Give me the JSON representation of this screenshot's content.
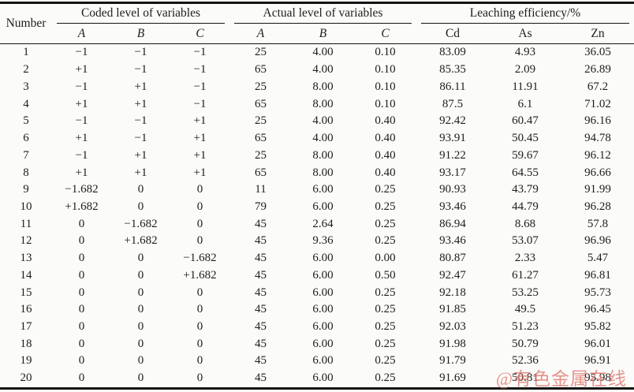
{
  "table": {
    "number_label": "Number",
    "groups": [
      {
        "label": "Coded level of variables",
        "cols": [
          "A",
          "B",
          "C"
        ]
      },
      {
        "label": "Actual level of variables",
        "cols": [
          "A",
          "B",
          "C"
        ]
      },
      {
        "label": "Leaching efficiency/%",
        "cols": [
          "Cd",
          "As",
          "Zn"
        ]
      }
    ],
    "rows": [
      [
        "1",
        "−1",
        "−1",
        "−1",
        "25",
        "4.00",
        "0.10",
        "83.09",
        "4.93",
        "36.05"
      ],
      [
        "2",
        "+1",
        "−1",
        "−1",
        "65",
        "4.00",
        "0.10",
        "85.35",
        "2.09",
        "26.89"
      ],
      [
        "3",
        "−1",
        "+1",
        "−1",
        "25",
        "8.00",
        "0.10",
        "86.11",
        "11.91",
        "67.2"
      ],
      [
        "4",
        "+1",
        "+1",
        "−1",
        "65",
        "8.00",
        "0.10",
        "87.5",
        "6.1",
        "71.02"
      ],
      [
        "5",
        "−1",
        "−1",
        "+1",
        "25",
        "4.00",
        "0.40",
        "92.42",
        "60.47",
        "96.16"
      ],
      [
        "6",
        "+1",
        "−1",
        "+1",
        "65",
        "4.00",
        "0.40",
        "93.91",
        "50.45",
        "94.78"
      ],
      [
        "7",
        "−1",
        "+1",
        "+1",
        "25",
        "8.00",
        "0.40",
        "91.22",
        "59.67",
        "96.12"
      ],
      [
        "8",
        "+1",
        "+1",
        "+1",
        "65",
        "8.00",
        "0.40",
        "93.17",
        "64.55",
        "96.66"
      ],
      [
        "9",
        "−1.682",
        "0",
        "0",
        "11",
        "6.00",
        "0.25",
        "90.93",
        "43.79",
        "91.99"
      ],
      [
        "10",
        "+1.682",
        "0",
        "0",
        "79",
        "6.00",
        "0.25",
        "93.46",
        "44.79",
        "96.28"
      ],
      [
        "11",
        "0",
        "−1.682",
        "0",
        "45",
        "2.64",
        "0.25",
        "86.94",
        "8.68",
        "57.8"
      ],
      [
        "12",
        "0",
        "+1.682",
        "0",
        "45",
        "9.36",
        "0.25",
        "93.46",
        "53.07",
        "96.96"
      ],
      [
        "13",
        "0",
        "0",
        "−1.682",
        "45",
        "6.00",
        "0.00",
        "80.87",
        "2.33",
        "5.47"
      ],
      [
        "14",
        "0",
        "0",
        "+1.682",
        "45",
        "6.00",
        "0.50",
        "92.47",
        "61.27",
        "96.81"
      ],
      [
        "15",
        "0",
        "0",
        "0",
        "45",
        "6.00",
        "0.25",
        "92.18",
        "53.25",
        "95.73"
      ],
      [
        "16",
        "0",
        "0",
        "0",
        "45",
        "6.00",
        "0.25",
        "91.85",
        "49.5",
        "96.45"
      ],
      [
        "17",
        "0",
        "0",
        "0",
        "45",
        "6.00",
        "0.25",
        "92.03",
        "51.23",
        "95.82"
      ],
      [
        "18",
        "0",
        "0",
        "0",
        "45",
        "6.00",
        "0.25",
        "91.98",
        "50.79",
        "96.01"
      ],
      [
        "19",
        "0",
        "0",
        "0",
        "45",
        "6.00",
        "0.25",
        "91.79",
        "52.36",
        "96.91"
      ],
      [
        "20",
        "0",
        "0",
        "0",
        "45",
        "6.00",
        "0.25",
        "91.69",
        "50.81",
        "95.98"
      ]
    ]
  },
  "watermark": {
    "text": "@有色金属在线",
    "color": "#e07c73"
  }
}
